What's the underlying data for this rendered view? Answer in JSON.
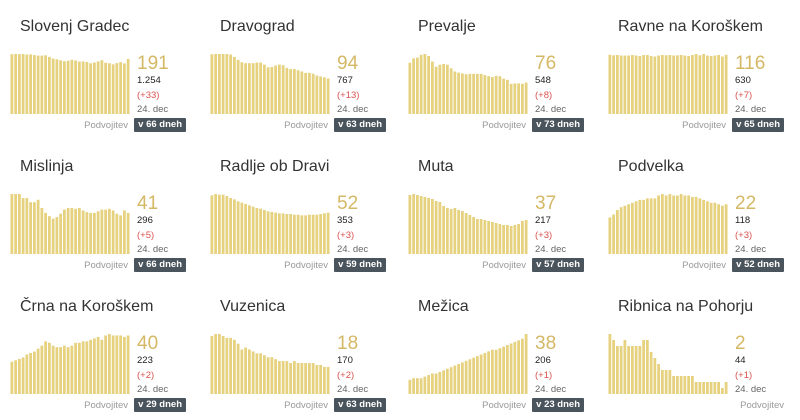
{
  "colors": {
    "bar": "#e6d17f",
    "value": "#d4b865",
    "delta": "#d9534f",
    "badge": "#4a545c"
  },
  "follow_label": "Podvojitev",
  "date_label": "24. dec",
  "chart_data": [
    {
      "type": "bar",
      "title": "Slovenj Gradec",
      "value": 191,
      "active": "1.254",
      "delta": "(+33)",
      "doubling": "v 66 dneh",
      "values": [
        330,
        331,
        330,
        331,
        328,
        329,
        325,
        322,
        322,
        324,
        315,
        306,
        302,
        296,
        291,
        294,
        299,
        295,
        289,
        290,
        287,
        280,
        284,
        290,
        297,
        283,
        280,
        274,
        281,
        286,
        279,
        304
      ]
    },
    {
      "type": "bar",
      "title": "Dravograd",
      "value": 94,
      "active": "767",
      "delta": "(+13)",
      "doubling": "v 63 dneh",
      "values": [
        202,
        203,
        203,
        203,
        203,
        201,
        193,
        183,
        175,
        172,
        172,
        172,
        174,
        174,
        167,
        158,
        159,
        164,
        167,
        165,
        156,
        152,
        152,
        148,
        144,
        139,
        139,
        136,
        130,
        127,
        124,
        120
      ]
    },
    {
      "type": "bar",
      "title": "Prevalje",
      "value": 76,
      "active": "548",
      "delta": "(+8)",
      "doubling": "v 73 dneh",
      "values": [
        129,
        140,
        142,
        149,
        151,
        146,
        132,
        119,
        124,
        126,
        124,
        115,
        107,
        104,
        102,
        100,
        101,
        101,
        101,
        101,
        98,
        95,
        93,
        96,
        95,
        89,
        86,
        76,
        77,
        77,
        76,
        79
      ]
    },
    {
      "type": "bar",
      "title": "Ravne na Koroškem",
      "value": 116,
      "active": "630",
      "delta": "(+7)",
      "doubling": "v 65 dneh",
      "values": [
        232,
        230,
        231,
        229,
        229,
        229,
        231,
        229,
        227,
        231,
        231,
        227,
        225,
        229,
        231,
        230,
        231,
        229,
        230,
        231,
        229,
        227,
        231,
        235,
        230,
        235,
        229,
        227,
        229,
        231,
        225,
        232
      ]
    },
    {
      "type": "bar",
      "title": "Mislinja",
      "value": 41,
      "active": "296",
      "delta": "(+5)",
      "doubling": "v 66 dneh",
      "values": [
        73,
        73,
        73,
        68,
        68,
        63,
        63,
        66,
        56,
        50,
        46,
        43,
        45,
        49,
        54,
        56,
        56,
        55,
        56,
        53,
        51,
        50,
        50,
        52,
        54,
        54,
        55,
        53,
        49,
        47,
        53,
        50
      ]
    },
    {
      "type": "bar",
      "title": "Radlje ob Dravi",
      "value": 52,
      "active": "353",
      "delta": "(+3)",
      "doubling": "v 59 dneh",
      "values": [
        88,
        90,
        89,
        89,
        87,
        84,
        82,
        79,
        77,
        75,
        73,
        71,
        69,
        68,
        66,
        64,
        63,
        62,
        61,
        61,
        60,
        60,
        59,
        59,
        58,
        58,
        59,
        59,
        59,
        60,
        61,
        62
      ]
    },
    {
      "type": "bar",
      "title": "Muta",
      "value": 37,
      "active": "217",
      "delta": "(+3)",
      "doubling": "v 57 dneh",
      "values": [
        59,
        60,
        59,
        58,
        57,
        56,
        55,
        53,
        52,
        48,
        46,
        45,
        46,
        44,
        43,
        41,
        39,
        37,
        35,
        35,
        34,
        33,
        32,
        31,
        30,
        29,
        29,
        28,
        29,
        30,
        33,
        34
      ]
    },
    {
      "type": "bar",
      "title": "Podvelka",
      "value": 22,
      "active": "118",
      "delta": "(+3)",
      "doubling": "v 52 dneh",
      "values": [
        25,
        27,
        30,
        32,
        33,
        34,
        35,
        36,
        37,
        37,
        38,
        38,
        38,
        40,
        41,
        40,
        41,
        40,
        40,
        41,
        40,
        40,
        39,
        39,
        38,
        37,
        36,
        35,
        35,
        34,
        33,
        34
      ]
    },
    {
      "type": "bar",
      "title": "Črna na Koroškem",
      "value": 40,
      "active": "223",
      "delta": "(+2)",
      "doubling": "v 29 dneh",
      "values": [
        22,
        23,
        24,
        25,
        27,
        28,
        29,
        31,
        33,
        36,
        35,
        33,
        32,
        32,
        33,
        32,
        33,
        35,
        35,
        36,
        36,
        37,
        38,
        39,
        37,
        40,
        41,
        40,
        40,
        40,
        39,
        40
      ]
    },
    {
      "type": "bar",
      "title": "Vuzenica",
      "value": 18,
      "active": "170",
      "delta": "(+2)",
      "doubling": "v 63 dneh",
      "values": [
        30,
        31,
        31,
        30,
        29,
        29,
        28,
        26,
        23,
        24,
        23,
        22,
        21,
        21,
        20,
        19,
        19,
        18,
        17,
        17,
        17,
        16,
        17,
        16,
        16,
        16,
        16,
        16,
        15,
        15,
        14,
        14
      ]
    },
    {
      "type": "bar",
      "title": "Mežica",
      "value": 38,
      "active": "206",
      "delta": "(+1)",
      "doubling": "v 23 dneh",
      "values": [
        9,
        10,
        10,
        10,
        11,
        12,
        13,
        13,
        14,
        15,
        16,
        17,
        18,
        19,
        20,
        21,
        22,
        23,
        24,
        25,
        26,
        27,
        28,
        28,
        29,
        30,
        31,
        32,
        33,
        34,
        35,
        38
      ]
    },
    {
      "type": "bar",
      "title": "Ribnica na Pohorju",
      "value": 2,
      "active": "44",
      "delta": "(+1)",
      "doubling": "",
      "values": [
        10,
        9,
        8,
        8,
        9,
        8,
        8,
        8,
        8,
        9,
        9,
        7,
        6,
        5,
        4,
        4,
        4,
        3,
        3,
        3,
        3,
        3,
        3,
        2,
        2,
        2,
        2,
        2,
        2,
        2,
        1,
        2
      ]
    }
  ]
}
